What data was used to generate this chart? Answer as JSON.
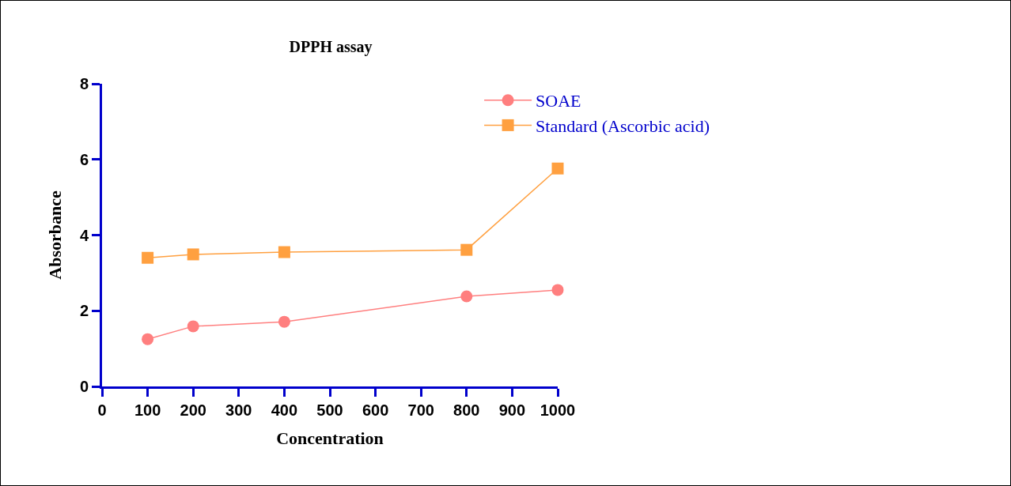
{
  "chart_data": {
    "type": "line",
    "title": "DPPH assay",
    "xlabel": "Concentration",
    "ylabel": "Absorbance",
    "x": [
      100,
      200,
      400,
      800,
      1000
    ],
    "series": [
      {
        "name": "SOAE",
        "color": "#ff7f7f",
        "marker": "circle",
        "values": [
          1.25,
          1.59,
          1.71,
          2.38,
          2.55
        ]
      },
      {
        "name": "Standard (Ascorbic acid)",
        "color": "#ffa040",
        "marker": "square",
        "values": [
          3.4,
          3.49,
          3.55,
          3.61,
          5.76
        ]
      }
    ],
    "xlim": [
      0,
      1000
    ],
    "xticks": [
      0,
      100,
      200,
      300,
      400,
      500,
      600,
      700,
      800,
      900,
      1000
    ],
    "ylim": [
      0,
      8
    ],
    "yticks": [
      0,
      2,
      4,
      6,
      8
    ],
    "grid": false,
    "legend": "top right",
    "line_style": "solid"
  }
}
